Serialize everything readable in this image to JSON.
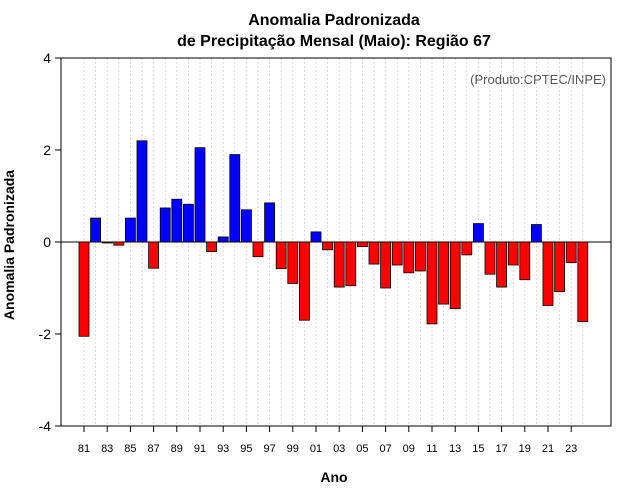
{
  "chart_data": {
    "type": "bar",
    "title": "Anomalia Padronizada",
    "subtitle": "de Precipitação Mensal (Maio): Região 67",
    "xlabel": "Ano",
    "ylabel": "Anomalia Padronizada",
    "credit": "(Produto:CPTEC/INPE)",
    "ylim": [
      -4,
      4
    ],
    "yticks": [
      "-4",
      "-2",
      "0",
      "2",
      "4"
    ],
    "grid": true,
    "colors": {
      "positive": "#0000ff",
      "negative": "#ff0000",
      "outline": "#000000",
      "grid": "#d3d3d3"
    },
    "categories": [
      "1981",
      "1982",
      "1983",
      "1984",
      "1985",
      "1986",
      "1987",
      "1988",
      "1989",
      "1990",
      "1991",
      "1992",
      "1993",
      "1994",
      "1995",
      "1996",
      "1997",
      "1998",
      "1999",
      "2000",
      "2001",
      "2002",
      "2003",
      "2004",
      "2005",
      "2006",
      "2007",
      "2008",
      "2009",
      "2010",
      "2011",
      "2012",
      "2013",
      "2014",
      "2015",
      "2016",
      "2017",
      "2018",
      "2019",
      "2020",
      "2021",
      "2022",
      "2023",
      "2024"
    ],
    "values": [
      -2.05,
      0.52,
      -0.02,
      -0.07,
      0.52,
      2.2,
      -0.57,
      0.74,
      0.93,
      0.82,
      2.05,
      -0.21,
      0.11,
      1.9,
      0.7,
      -0.32,
      0.85,
      -0.58,
      -0.9,
      -1.7,
      0.22,
      -0.17,
      -0.98,
      -0.95,
      -0.1,
      -0.48,
      -1.0,
      -0.5,
      -0.67,
      -0.63,
      -1.78,
      -1.35,
      -1.45,
      -0.28,
      0.4,
      -0.7,
      -0.98,
      -0.5,
      -0.82,
      0.38,
      -1.38,
      -1.08,
      -0.45,
      -1.73
    ],
    "xtick_labels": [
      "81",
      "83",
      "85",
      "87",
      "89",
      "91",
      "93",
      "95",
      "97",
      "99",
      "01",
      "03",
      "05",
      "07",
      "09",
      "11",
      "13",
      "15",
      "17",
      "19",
      "21",
      "23"
    ]
  }
}
